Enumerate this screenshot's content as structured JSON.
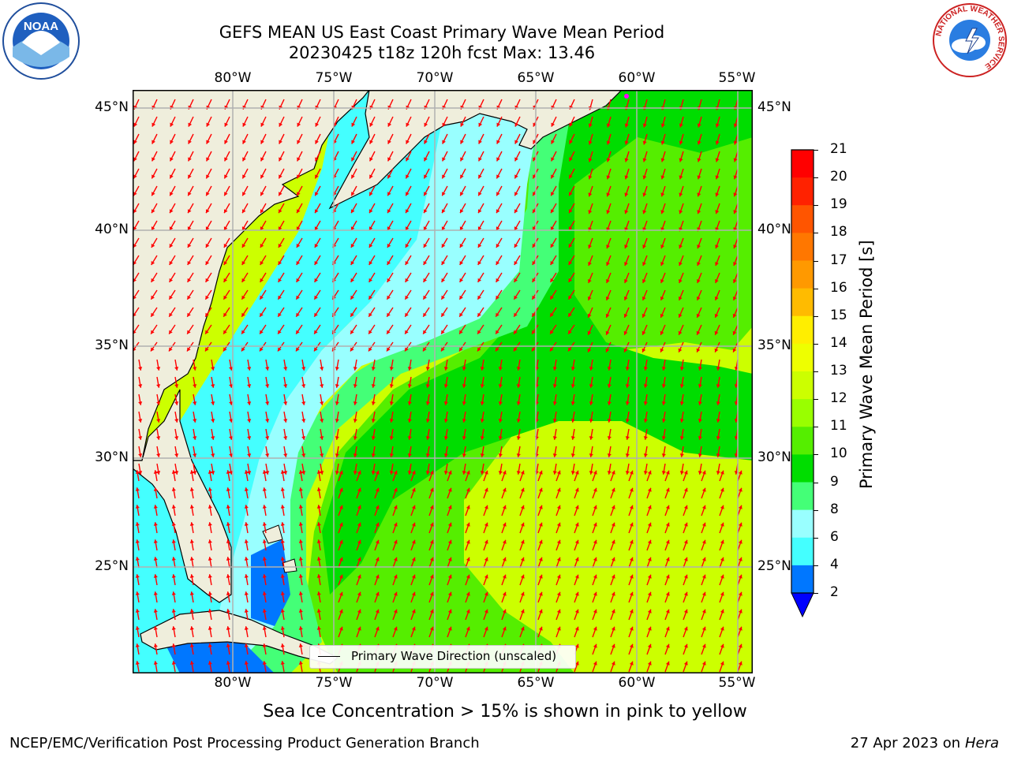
{
  "header": {
    "title_line1": "GEFS MEAN US East Coast Primary Wave Mean Period",
    "title_line2": "20230425 t18z 120h fcst   Max: 13.46"
  },
  "map": {
    "lon_labels": [
      "80°W",
      "75°W",
      "70°W",
      "65°W",
      "60°W",
      "55°W"
    ],
    "lat_labels_left": [
      "45°N",
      "40°N",
      "35°N",
      "30°N",
      "25°N"
    ],
    "lat_labels_right": [
      "45°N",
      "40°N",
      "35°N",
      "30°N",
      "25°N"
    ],
    "legend_label": "Primary Wave Direction (unscaled)",
    "arrow_color": "#ff0000",
    "land_color": "#efeedc",
    "grid_color": "#b0b0b0"
  },
  "colorbar": {
    "label": "Primary Wave Mean Period [s]",
    "ticks": [
      "21",
      "20",
      "19",
      "18",
      "17",
      "16",
      "15",
      "14",
      "13",
      "12",
      "11",
      "10",
      "9",
      "8",
      "6",
      "4",
      "2"
    ],
    "colors": [
      "#ff0000",
      "#ff2200",
      "#ff5500",
      "#ff7700",
      "#ff9900",
      "#ffbb00",
      "#ffee00",
      "#eeff00",
      "#ccff00",
      "#99ff00",
      "#55ee00",
      "#00dd00",
      "#44ff77",
      "#99ffff",
      "#44ffff",
      "#00ffff",
      "#00ddff",
      "#0077ff"
    ],
    "extend_color": "#0000ff"
  },
  "annotations": {
    "sea_ice_note": "Sea Ice Concentration > 15% is shown in pink to yellow"
  },
  "footer": {
    "left": "NCEP/EMC/Verification Post Processing Product Generation Branch",
    "right_date": "27 Apr 2023 on ",
    "right_host": "Hera"
  },
  "logos": {
    "noaa": "NOAA",
    "nws_ring": "NATIONAL WEATHER SERVICE"
  }
}
